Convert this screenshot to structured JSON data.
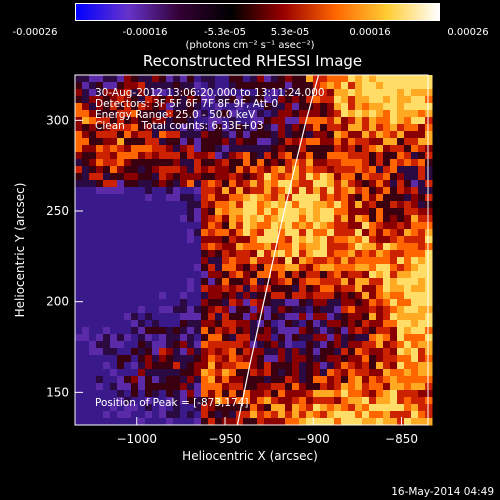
{
  "colorbar": {
    "ticks": [
      "-0.00026",
      "-0.00016",
      "-5.3e-05",
      "5.3e-05",
      "0.00016",
      "0.00026"
    ],
    "units": "(photons cm⁻² s⁻¹ asec⁻²)",
    "colors": [
      "#0000ff",
      "#6633cc",
      "#330033",
      "#000000",
      "#990000",
      "#ff6600",
      "#ffcc33",
      "#ffffff"
    ]
  },
  "title": "Reconstructed RHESSI Image",
  "info": {
    "time_range": "30-Aug-2012 13:06:20.000 to 13:11:24.000",
    "detectors": "Detectors: 3F 5F 6F 7F 8F 9F, Att 0",
    "energy": "Energy Range: 25.0 - 50.0 keV",
    "algorithm": "Clean     Total counts: 6.33E+03"
  },
  "peak_label": "Position of Peak = [-873,174]",
  "footer_date": "16-May-2014 04:49",
  "chart_data": {
    "type": "heatmap",
    "title": "Reconstructed RHESSI Image",
    "xlabel": "Heliocentric X (arcsec)",
    "ylabel": "Heliocentric Y (arcsec)",
    "xlim": [
      -1035,
      -835
    ],
    "ylim": [
      132,
      325
    ],
    "x_ticks": [
      -1000,
      -950,
      -900,
      -850
    ],
    "y_ticks": [
      150,
      200,
      250,
      300
    ],
    "x_tick_labels": [
      "−1000",
      "−950",
      "−900",
      "−850"
    ],
    "y_tick_labels": [
      "150",
      "200",
      "250",
      "300"
    ],
    "value_range": [
      -0.00026,
      0.00026
    ],
    "peak_position": [
      -873,
      174
    ],
    "limb_curve": {
      "x": [
        -943,
        -936,
        -928,
        -920,
        -912,
        -904,
        -897
      ],
      "y": [
        132,
        165,
        200,
        235,
        268,
        300,
        325
      ]
    }
  }
}
